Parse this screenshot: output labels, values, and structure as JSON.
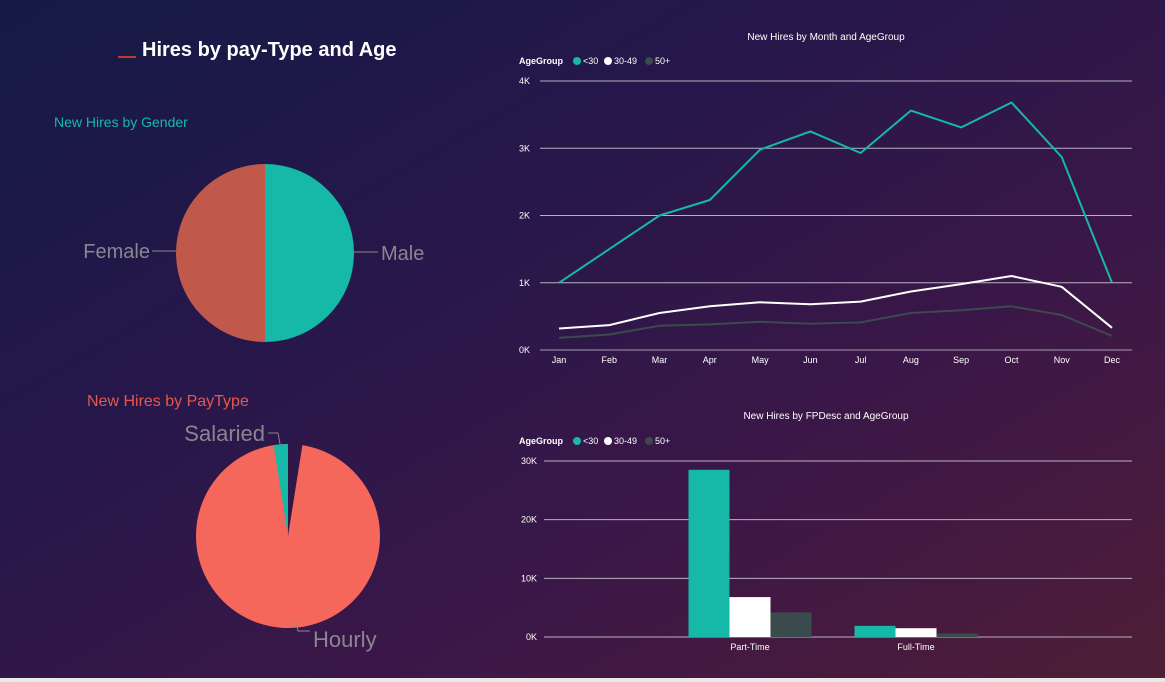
{
  "title": "Hires by pay-Type and Age",
  "colors": {
    "teal": "#16b8a8",
    "white": "#ffffff",
    "dark": "#3b4a4d",
    "female": "#c0584b",
    "hourly": "#f5665b",
    "gender_title": "#17b7b0",
    "paytype_title": "#e8574a",
    "axis_text": "#ffffff",
    "label_text": "#8a8590"
  },
  "chart_data": [
    {
      "type": "pie",
      "title": "New Hires by Gender",
      "labels": [
        "Female",
        "Male"
      ],
      "values": [
        50,
        50
      ],
      "colors": [
        "#c0584b",
        "#16b8a8"
      ]
    },
    {
      "type": "pie",
      "title": "New Hires by PayType",
      "labels": [
        "Hourly",
        "Salaried"
      ],
      "values": [
        97.5,
        2.5
      ],
      "colors": [
        "#f5665b",
        "#16b8a8"
      ]
    },
    {
      "type": "line",
      "title": "New Hires by Month and AgeGroup",
      "legend_title": "AgeGroup",
      "legend_position": "top-left",
      "categories": [
        "Jan",
        "Feb",
        "Mar",
        "Apr",
        "May",
        "Jun",
        "Jul",
        "Aug",
        "Sep",
        "Oct",
        "Nov",
        "Dec"
      ],
      "y_ticks": [
        "0K",
        "1K",
        "2K",
        "3K",
        "4K"
      ],
      "ylim": [
        0,
        4000
      ],
      "grid": true,
      "series": [
        {
          "name": "<30",
          "color": "#16b8a8",
          "values": [
            1000,
            1500,
            2000,
            2230,
            2980,
            3250,
            2930,
            3560,
            3310,
            3680,
            2870,
            1000
          ]
        },
        {
          "name": "30-49",
          "color": "#ffffff",
          "values": [
            320,
            370,
            550,
            650,
            710,
            680,
            720,
            870,
            980,
            1100,
            940,
            330
          ]
        },
        {
          "name": "50+",
          "color": "#3b4a4d",
          "values": [
            180,
            230,
            360,
            380,
            420,
            390,
            410,
            550,
            590,
            650,
            520,
            210
          ]
        }
      ]
    },
    {
      "type": "bar",
      "title": "New Hires by FPDesc and AgeGroup",
      "legend_title": "AgeGroup",
      "legend_position": "top-left",
      "categories": [
        "Part-Time",
        "Full-Time"
      ],
      "y_ticks": [
        "0K",
        "10K",
        "20K",
        "30K"
      ],
      "ylim": [
        0,
        30000
      ],
      "grid": true,
      "series": [
        {
          "name": "<30",
          "color": "#16b8a8",
          "values": [
            28500,
            1900
          ]
        },
        {
          "name": "30-49",
          "color": "#ffffff",
          "values": [
            6800,
            1500
          ]
        },
        {
          "name": "50+",
          "color": "#3b4a4d",
          "values": [
            4200,
            600
          ]
        }
      ]
    }
  ]
}
